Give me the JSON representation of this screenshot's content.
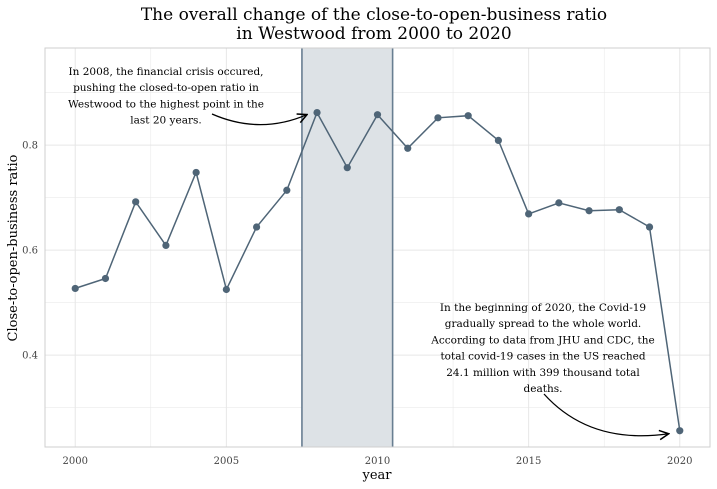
{
  "chart_data": {
    "type": "line",
    "title_lines": [
      "The overall change of the close-to-open-business ratio",
      "in Westwood from 2000 to 2020"
    ],
    "xlabel": "year",
    "ylabel": "Close-to-open-business ratio",
    "xlim": [
      1999.0,
      2021.0
    ],
    "ylim": [
      0.225,
      0.985
    ],
    "x_ticks": [
      2000,
      2005,
      2010,
      2015,
      2020
    ],
    "y_ticks": [
      0.4,
      0.6,
      0.8
    ],
    "grid": true,
    "series": [
      {
        "x": [
          2000,
          2001,
          2002,
          2003,
          2004,
          2005,
          2006,
          2007,
          2008,
          2009,
          2010,
          2011,
          2012,
          2013,
          2014,
          2015,
          2016,
          2017,
          2018,
          2019,
          2020
        ],
        "y": [
          0.527,
          0.546,
          0.692,
          0.609,
          0.748,
          0.525,
          0.644,
          0.714,
          0.862,
          0.757,
          0.858,
          0.794,
          0.852,
          0.856,
          0.809,
          0.669,
          0.69,
          0.675,
          0.677,
          0.644,
          0.256
        ]
      }
    ],
    "highlight_range": [
      2007.5,
      2010.5
    ],
    "annotations": [
      {
        "lines": [
          "In 2008, the financial crisis occured,",
          "pushing the closed-to-open ratio in",
          "Westwood to the highest point in the",
          "last 20 years."
        ],
        "target": [
          2008,
          0.862
        ]
      },
      {
        "lines": [
          "In the beginning of 2020, the Covid-19",
          "gradually spread to the whole world.",
          "According to data from JHU and CDC, the",
          "total covid-19 cases in the US reached",
          "24.1 million with 399 thousand total",
          "deaths."
        ],
        "target": [
          2020,
          0.256
        ]
      }
    ],
    "colors": {
      "line": "#4f6577",
      "point": "#4f6577",
      "highlight_fill": "#dde2e6",
      "highlight_border": "#687e91",
      "grid": "#e6e6e6",
      "panel_border": "#cfcfcf"
    }
  }
}
